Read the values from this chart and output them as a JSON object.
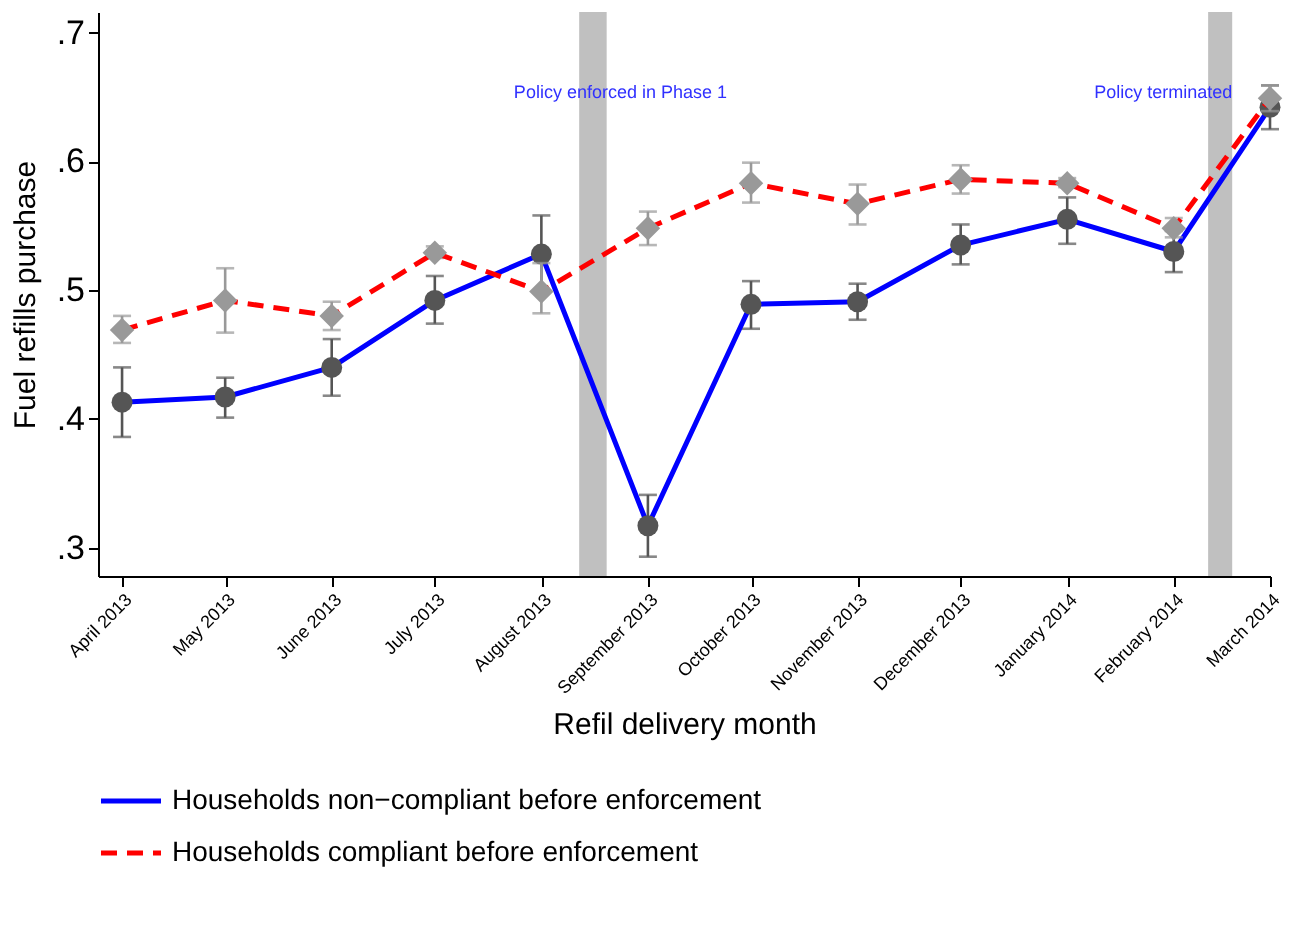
{
  "chart_data": {
    "type": "line",
    "xlabel": "Refil delivery month",
    "ylabel": "Fuel refills purchase",
    "x": [
      "2013-04",
      "2013-05",
      "2013-06",
      "2013-07",
      "2013-08",
      "2013-09",
      "2013-10",
      "2013-11",
      "2013-12",
      "2014-01",
      "2014-02",
      "2014-03"
    ],
    "xlim": [
      "2013-03-25",
      "2014-03-01"
    ],
    "xticks": [
      {
        "value": "2013-04",
        "label": "April 2013"
      },
      {
        "value": "2013-05",
        "label": "May 2013"
      },
      {
        "value": "2013-06",
        "label": "June 2013"
      },
      {
        "value": "2013-07",
        "label": "July 2013"
      },
      {
        "value": "2013-08",
        "label": "August 2013"
      },
      {
        "value": "2013-09",
        "label": "September 2013"
      },
      {
        "value": "2013-10",
        "label": "October 2013"
      },
      {
        "value": "2013-11",
        "label": "November 2013"
      },
      {
        "value": "2013-12",
        "label": "December 2013"
      },
      {
        "value": "2014-01",
        "label": "January 2014"
      },
      {
        "value": "2014-02",
        "label": "February 2014"
      },
      {
        "value": "2014-03",
        "label": "March 2014"
      }
    ],
    "ylim": [
      0.278,
      0.716
    ],
    "yticks": [
      {
        "value": 0.3,
        "label": ".3"
      },
      {
        "value": 0.4,
        "label": ".4"
      },
      {
        "value": 0.5,
        "label": ".5"
      },
      {
        "value": 0.6,
        "label": ".6"
      },
      {
        "value": 0.7,
        "label": ".7"
      }
    ],
    "series": [
      {
        "name": "Households non−compliant before enforcement",
        "color": "#0000ff",
        "marker": "circle",
        "line_style": "solid",
        "values": [
          0.413,
          0.417,
          0.44,
          0.492,
          0.528,
          0.317,
          0.489,
          0.491,
          0.535,
          0.555,
          0.53,
          0.642
        ],
        "errors": [
          [
            0.386,
            0.44
          ],
          [
            0.401,
            0.432
          ],
          [
            0.418,
            0.462
          ],
          [
            0.474,
            0.511
          ],
          [
            0.499,
            0.558
          ],
          [
            0.293,
            0.341
          ],
          [
            0.47,
            0.507
          ],
          [
            0.477,
            0.505
          ],
          [
            0.52,
            0.551
          ],
          [
            0.536,
            0.572
          ],
          [
            0.514,
            0.546
          ],
          [
            0.625,
            0.659
          ]
        ]
      },
      {
        "name": "Households compliant before enforcement",
        "color": "#ff0000",
        "marker": "diamond",
        "line_style": "dashed",
        "values": [
          0.469,
          0.492,
          0.48,
          0.529,
          0.499,
          0.548,
          0.583,
          0.567,
          0.586,
          0.583,
          0.548,
          0.649
        ],
        "errors": [
          [
            0.459,
            0.48
          ],
          [
            0.467,
            0.517
          ],
          [
            0.469,
            0.491
          ],
          [
            0.525,
            0.534
          ],
          [
            0.482,
            0.521
          ],
          [
            0.535,
            0.561
          ],
          [
            0.568,
            0.599
          ],
          [
            0.551,
            0.582
          ],
          [
            0.575,
            0.597
          ],
          [
            0.58,
            0.587
          ],
          [
            0.541,
            0.556
          ],
          [
            0.639,
            0.659
          ]
        ]
      }
    ],
    "bands": [
      {
        "axis": "x",
        "from": "2013-08-12",
        "to": "2013-08-20",
        "label": "Policy enforced in Phase 1",
        "color": "#c0c0c0"
      },
      {
        "axis": "x",
        "from": "2014-02-11",
        "to": "2014-02-18",
        "label": "Policy terminated",
        "color": "#c0c0c0"
      }
    ],
    "grid": false,
    "legend": "bottom"
  }
}
